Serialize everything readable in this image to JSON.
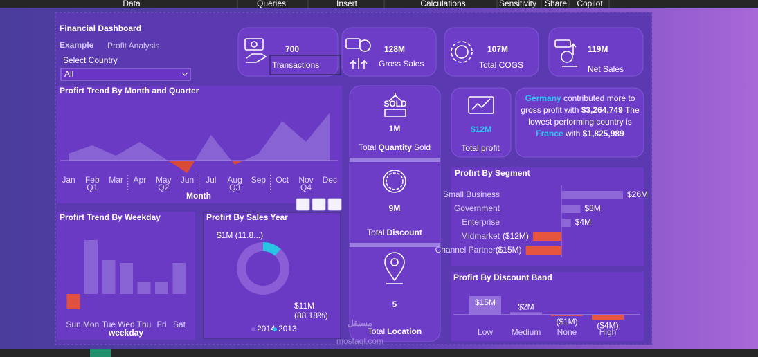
{
  "menu": [
    "Data",
    "Queries",
    "Insert",
    "Calculations",
    "Sensitivity",
    "Share",
    "Copilot"
  ],
  "header": {
    "title": "Financial Dashboard",
    "subtitle_bold": "Example",
    "subtitle": "Profit Analysis",
    "filter_label": "Select Country",
    "filter_value": "All"
  },
  "kpis": [
    {
      "value": "700",
      "label": "Transactions"
    },
    {
      "value": "128M",
      "label": "Gross Sales"
    },
    {
      "value": "107M",
      "label": "Total COGS"
    },
    {
      "value": "119M",
      "label": "Net Sales"
    }
  ],
  "tiles": [
    {
      "icon_text": "SOLD",
      "value": "1M",
      "label": [
        "Total",
        "Quantity",
        "Sold"
      ]
    },
    {
      "value": "9M",
      "label": [
        "Total",
        "Discount"
      ]
    },
    {
      "value": "5",
      "label": [
        "Total",
        "Location"
      ]
    }
  ],
  "profit": {
    "value": "$12M",
    "label": "Total profit"
  },
  "insight": {
    "top_country": "Germany",
    "top_text": "contributed more to gross profit with",
    "top_value": "$3,264,749",
    "low_text": "The lowest performing country is",
    "low_country": "France",
    "low_with": "with",
    "low_value": "$1,825,989"
  },
  "charts": [
    {
      "type": "area",
      "title": "Profirt Trend By Month and Quarter",
      "categories": [
        "Jan",
        "Feb",
        "Mar",
        "Apr",
        "May",
        "Jun",
        "Jul",
        "Aug",
        "Sep",
        "Oct",
        "Nov",
        "Dec"
      ],
      "values": [
        100,
        220,
        70,
        270,
        40,
        -180,
        370,
        -60,
        100,
        570,
        270,
        690
      ],
      "groups": [
        "Q1",
        "Q2",
        "Q3",
        "Q4"
      ],
      "xlabel": "Month",
      "color": "#8763d3",
      "negative_color": "#d94a3a"
    },
    {
      "type": "bar",
      "title": "Profirt Trend By Weekday",
      "categories": [
        "Sun",
        "Mon",
        "Tue",
        "Wed",
        "Thu",
        "Fri",
        "Sat"
      ],
      "values": [
        -22,
        78,
        49,
        45,
        18,
        18,
        45
      ],
      "xlabel": "weekday",
      "color": "#8763d3",
      "negative_color": "#e0503e"
    },
    {
      "type": "donut",
      "title": "Profirt By Sales Year",
      "categories": [
        "2014",
        "2013"
      ],
      "values": [
        88.18,
        11.82
      ],
      "value_labels": [
        "$11M (88.18%)",
        "$1M (11.8...)"
      ],
      "colors": [
        "#8a5ed6",
        "#29c4e4"
      ]
    },
    {
      "type": "hbar",
      "title": "Profirt By Segment",
      "categories": [
        "Small Business",
        "Government",
        "Enterprise",
        "Midmarket",
        "Channel Partners"
      ],
      "values": [
        26,
        8,
        4,
        -12,
        -15
      ],
      "value_labels": [
        "$26M",
        "$8M",
        "$4M",
        "($12M)",
        "($15M)"
      ],
      "color": "#8f68d8",
      "negative_color": "#e8553f"
    },
    {
      "type": "bar",
      "title": "Profirt By Discount Band",
      "categories": [
        "Low",
        "Medium",
        "None",
        "High"
      ],
      "values": [
        15,
        2,
        -1,
        -4
      ],
      "value_labels": [
        "$15M",
        "$2M",
        "($1M)",
        "($4M)"
      ],
      "color": "#936fdb",
      "negative_color": "#e8553f"
    }
  ],
  "watermark": {
    "arabic": "مستقل",
    "latin": "mostaql.com"
  }
}
